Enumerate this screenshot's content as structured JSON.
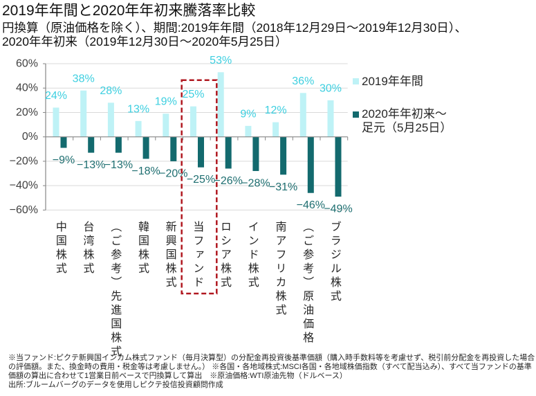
{
  "chart_data": {
    "type": "bar",
    "title": "2019年年間と2020年年初来騰落率比較",
    "subtitle": [
      "円換算（原油価格を除く）、期間:2019年年間（2018年12月29日～2019年12月30日）、",
      "2020年年初来（2019年12月30日～2020年5月25日）"
    ],
    "xlabel": "",
    "ylabel": "",
    "categories": [
      "中国株式",
      "台湾株式",
      "（ご参考）先進国株式",
      "韓国株式",
      "新興国株式",
      "当ファンド",
      "ロシア株式",
      "インド株式",
      "南アフリカ株式",
      "（ご参考）原油価格",
      "ブラジル株式"
    ],
    "series": [
      {
        "name": "2019年年間",
        "values": [
          24,
          38,
          28,
          13,
          19,
          25,
          53,
          9,
          12,
          36,
          30
        ],
        "data_labels": [
          "24%",
          "38%",
          "28%",
          "13%",
          "19%",
          "25%",
          "53%",
          "9%",
          "12%",
          "36%",
          "30%"
        ],
        "color": "#BEF2F6",
        "label_color": "#3DCFE0"
      },
      {
        "name": "2020年年初来～足元（5月25日）",
        "values": [
          -9,
          -13,
          -13,
          -18,
          -20,
          -25,
          -26,
          -28,
          -31,
          -46,
          -49
        ],
        "data_labels": [
          "−9%",
          "−13%",
          "−13%",
          "−18%",
          "−20%",
          "−25%",
          "−26%",
          "−28%",
          "−31%",
          "−46%",
          "−49%"
        ],
        "color": "#136A6E",
        "label_color": "#1E6E70"
      }
    ],
    "unit": "%",
    "ylim": [
      -60,
      60
    ],
    "yticks": [
      60,
      40,
      20,
      0,
      -20,
      -40,
      -60
    ],
    "ytick_labels": [
      "60%",
      "40%",
      "20%",
      "0%",
      "−20%",
      "−40%",
      "−60%"
    ],
    "grid": true,
    "legend": {
      "position": "right",
      "entries": [
        {
          "lines": [
            "2019年年間"
          ],
          "color": "#BEF2F6"
        },
        {
          "lines": [
            "2020年年初来～",
            "足元（5月25日）"
          ],
          "color": "#136A6E"
        }
      ]
    },
    "annotations": [
      {
        "type": "dashed-box",
        "category": "当ファンド",
        "color": "#B01820"
      }
    ]
  },
  "footnotes": [
    "※当ファンド:ピクテ新興国インカム株式ファンド（毎月決算型）の分配金再投資後基準価額（購入時手数料等を考慮せず、税引前分配金を再投資した場合",
    "の評価額。また、換金時の費用・税金等は考慮しません。） ※各国・各地域株式:MSCI各国・各地域株価指数（すべて配当込み）、すべて当ファンドの基準",
    "価額の算出に合わせて1営業日前ベースで円換算して算出　※原油価格:WTI原油先物（ドルベース）",
    "出所:ブルームバーグのデータを使用しピクテ投信投資顧問作成"
  ]
}
